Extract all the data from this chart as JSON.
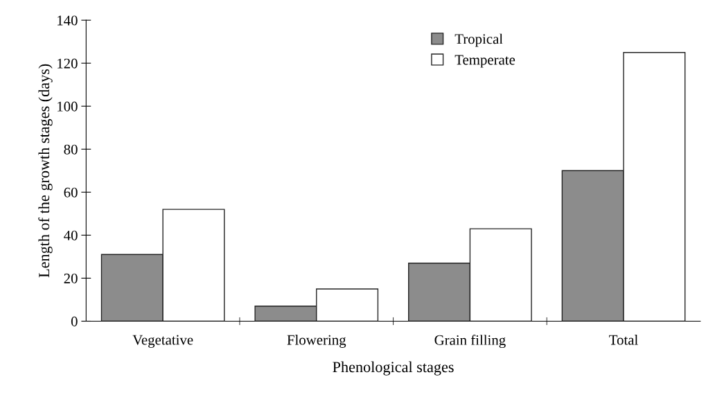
{
  "chart_data": {
    "type": "bar",
    "xlabel": "Phenological stages",
    "ylabel": "Length of the growth stages (days)",
    "categories": [
      "Vegetative",
      "Flowering",
      "Grain filling",
      "Total"
    ],
    "series": [
      {
        "name": "Tropical",
        "color": "#8c8c8c",
        "values": [
          31,
          7,
          27,
          70
        ]
      },
      {
        "name": "Temperate",
        "color": "#ffffff",
        "values": [
          52,
          15,
          43,
          125
        ]
      }
    ],
    "ylim": [
      0,
      140
    ],
    "yticks": [
      0,
      20,
      40,
      60,
      80,
      100,
      120,
      140
    ],
    "grid": false,
    "legend": "top right"
  }
}
